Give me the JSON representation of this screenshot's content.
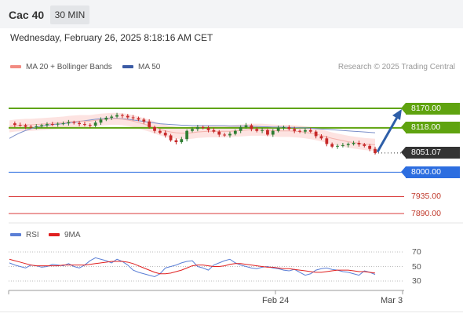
{
  "header": {
    "instrument": "Cac 40",
    "timeframe": "30 MIN",
    "datetime": "Wednesday, February 26, 2025 8:18:16 AM CET"
  },
  "legend": {
    "bb_label": "MA 20 + Bollinger Bands",
    "ma50_label": "MA 50",
    "credit": "Research © 2025 Trading Central",
    "bb_color": "#f28b82",
    "ma50_color": "#3b5ba5"
  },
  "levels": [
    {
      "id": "r2",
      "value": "8170.00",
      "color": "#5fa30f",
      "style": "box"
    },
    {
      "id": "r1",
      "value": "8118.00",
      "color": "#5fa30f",
      "style": "box"
    },
    {
      "id": "last",
      "value": "8051.07",
      "color": "#333333",
      "style": "box"
    },
    {
      "id": "pivot",
      "value": "8000.00",
      "color": "#2d6ee0",
      "style": "box"
    },
    {
      "id": "s1",
      "value": "7935.00",
      "color": "#d93a3a",
      "style": "plain"
    },
    {
      "id": "s2",
      "value": "7890.00",
      "color": "#d93a3a",
      "style": "plain"
    }
  ],
  "rsi": {
    "rsi_label": "RSI",
    "ma_label": "9MA",
    "rsi_color": "#5b7fd6",
    "ma_color": "#e02020",
    "ticks": [
      "70",
      "50",
      "30"
    ]
  },
  "xaxis": {
    "ticks": [
      "Feb 24",
      "Mar 3"
    ]
  },
  "chart_data": {
    "type": "line",
    "series": [
      {
        "name": "Price",
        "y": [
          8130,
          8126,
          8125,
          8121,
          8120,
          8122,
          8125,
          8128,
          8127,
          8129,
          8130,
          8133,
          8131,
          8128,
          8126,
          8124,
          8132,
          8140,
          8145,
          8148,
          8152,
          8150,
          8146,
          8144,
          8140,
          8135,
          8120,
          8110,
          8105,
          8098,
          8085,
          8080,
          8088,
          8110,
          8115,
          8120,
          8118,
          8112,
          8108,
          8100,
          8098,
          8102,
          8110,
          8120,
          8125,
          8115,
          8110,
          8112,
          8100,
          8110,
          8118,
          8120,
          8115,
          8110,
          8108,
          8112,
          8108,
          8096,
          8090,
          8075,
          8068,
          8070,
          8072,
          8075,
          8078,
          8074,
          8070,
          8062,
          8051
        ]
      },
      {
        "name": "MA 20",
        "y": [
          8122,
          8124,
          8125,
          8126,
          8126,
          8127,
          8128,
          8129,
          8130,
          8131,
          8132,
          8134,
          8135,
          8136,
          8136,
          8136,
          8138,
          8140,
          8141,
          8142,
          8142,
          8141,
          8139,
          8136,
          8132,
          8128,
          8124,
          8119,
          8114,
          8110,
          8107,
          8105,
          8104,
          8104,
          8105,
          8107,
          8108,
          8109,
          8109,
          8109,
          8109,
          8109,
          8110,
          8111,
          8112,
          8113,
          8113,
          8113,
          8112,
          8111,
          8110,
          8110,
          8110,
          8109,
          8108,
          8106,
          8104,
          8101,
          8098,
          8094,
          8090,
          8087,
          8084,
          8081,
          8079,
          8077,
          8075,
          8074,
          8073
        ]
      },
      {
        "name": "MA 50",
        "y": [
          8090,
          8098,
          8105,
          8111,
          8116,
          8120,
          8123,
          8125,
          8127,
          8128,
          8129,
          8131,
          8133,
          8135,
          8137,
          8139,
          8141,
          8142,
          8143,
          8143,
          8143,
          8142,
          8141,
          8139,
          8137,
          8135,
          8133,
          8131,
          8129,
          8128,
          8127,
          8126,
          8125,
          8125,
          8124,
          8124,
          8124,
          8124,
          8124,
          8124,
          8124,
          8123,
          8123,
          8123,
          8123,
          8122,
          8122,
          8121,
          8121,
          8120,
          8120,
          8120,
          8119,
          8119,
          8118,
          8118,
          8117,
          8116,
          8115,
          8114,
          8113,
          8112,
          8111,
          8110,
          8109,
          8108,
          8107,
          8106,
          8105
        ]
      },
      {
        "name": "RSI",
        "y": [
          55,
          52,
          50,
          48,
          52,
          51,
          49,
          50,
          53,
          52,
          51,
          54,
          50,
          48,
          52,
          58,
          62,
          60,
          58,
          55,
          60,
          57,
          52,
          45,
          42,
          40,
          38,
          36,
          40,
          48,
          50,
          52,
          55,
          57,
          58,
          50,
          48,
          45,
          52,
          55,
          58,
          60,
          55,
          52,
          50,
          48,
          47,
          49,
          50,
          48,
          47,
          45,
          44,
          46,
          42,
          38,
          40,
          45,
          47,
          48,
          46,
          45,
          43,
          42,
          40,
          38,
          44,
          42,
          39
        ]
      },
      {
        "name": "9MA",
        "y": [
          60,
          58,
          56,
          54,
          52,
          51,
          51,
          51,
          51,
          51,
          52,
          52,
          52,
          52,
          52,
          53,
          54,
          55,
          56,
          57,
          57,
          57,
          56,
          54,
          51,
          48,
          45,
          42,
          40,
          40,
          41,
          43,
          45,
          48,
          51,
          52,
          52,
          51,
          50,
          50,
          51,
          53,
          54,
          54,
          53,
          52,
          51,
          50,
          49,
          49,
          48,
          47,
          47,
          46,
          45,
          44,
          43,
          42,
          42,
          43,
          44,
          45,
          45,
          45,
          44,
          43,
          43,
          42,
          41
        ]
      }
    ],
    "levels": [
      8170,
      8118,
      8000,
      7935,
      7890
    ],
    "rsi_range": [
      30,
      70
    ],
    "x_ticks": [
      "Feb 24",
      "Mar 3"
    ]
  }
}
